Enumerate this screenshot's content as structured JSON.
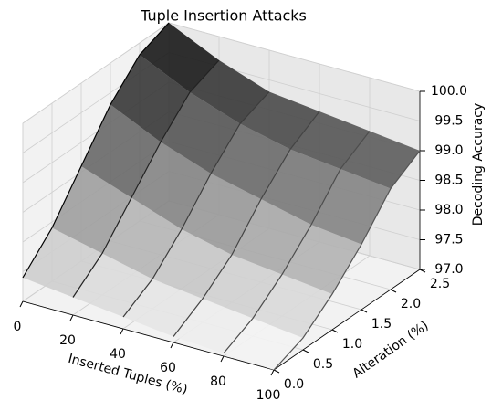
{
  "chart_data": {
    "type": "surface3d",
    "title": "Tuple Insertion Attacks",
    "xlabel": "Inserted Tuples (%)",
    "ylabel": "Alteration (%)",
    "zlabel": "Decoding Accuracy",
    "x": [
      0,
      20,
      40,
      60,
      80,
      100
    ],
    "y": [
      0,
      0.5,
      1.0,
      1.5,
      2.0,
      2.5
    ],
    "z": [
      [
        97.4,
        97.9,
        98.6,
        99.3,
        99.8,
        100.0
      ],
      [
        97.3,
        97.7,
        98.3,
        98.9,
        99.4,
        99.6
      ],
      [
        97.2,
        97.5,
        98.0,
        98.6,
        99.1,
        99.3
      ],
      [
        97.1,
        97.4,
        97.8,
        98.4,
        98.9,
        99.2
      ],
      [
        97.05,
        97.3,
        97.7,
        98.2,
        98.8,
        99.1
      ],
      [
        97.0,
        97.2,
        97.6,
        98.1,
        98.7,
        99.0
      ]
    ],
    "colormap": "gray",
    "xlim": [
      0,
      100
    ],
    "xticks": [
      0,
      20,
      40,
      60,
      80,
      100
    ],
    "ylim": [
      0,
      2.5
    ],
    "yticks": [
      {
        "value": 0,
        "label": "0.0"
      },
      0.5,
      {
        "value": 1,
        "label": "1.0"
      },
      1.5,
      {
        "value": 2,
        "label": "2.0"
      },
      2.5
    ],
    "zlim": [
      97,
      100
    ],
    "zticks": [
      {
        "value": 97,
        "label": "97.0"
      },
      97.5,
      {
        "value": 98,
        "label": "98.0"
      },
      98.5,
      {
        "value": 99,
        "label": "99.0"
      },
      99.5,
      {
        "value": 100,
        "label": "100.0"
      }
    ],
    "grid": true
  }
}
